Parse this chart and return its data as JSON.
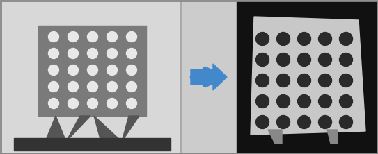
{
  "fig_width": 5.43,
  "fig_height": 2.22,
  "dpi": 100,
  "border_color": "#888888",
  "left_panel": {
    "bg_color": "#d8d8d8",
    "plate_color": "#7a7a7a",
    "hole_color": "#e8e8e8",
    "stand_color": "#555555",
    "base_color": "#333333"
  },
  "right_panel": {
    "bg_color": "#111111",
    "plate_color": "#c8c8c8",
    "hole_color": "#2a2a2a",
    "stand_color": "#888888"
  },
  "arrow_color": "#4488cc",
  "hole_grid_rows": 5,
  "hole_grid_cols": 5
}
